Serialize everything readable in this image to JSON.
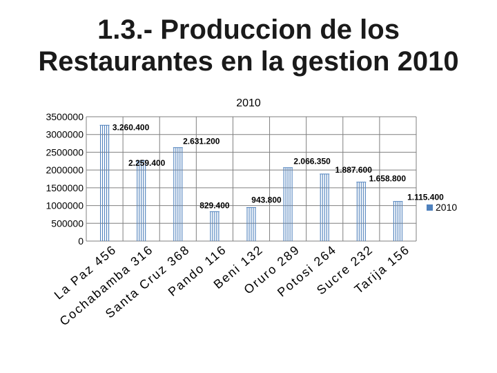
{
  "slide": {
    "title_line1": "1.3.- Produccion de los",
    "title_line2": "Restaurantes en la gestion 2010"
  },
  "chart_data": {
    "type": "bar",
    "title": "2010",
    "categories": [
      "La Paz 456",
      "Cochabamba 316",
      "Santa Cruz 368",
      "Pando 116",
      "Beni 132",
      "Oruro 289",
      "Potosi 264",
      "Sucre 232",
      "Tarija 156"
    ],
    "series": [
      {
        "name": "2010",
        "values": [
          3260400,
          2259400,
          2631200,
          829400,
          943800,
          2066350,
          1887600,
          1658800,
          1115400
        ],
        "data_labels": [
          "3.260.400",
          "2.259.400",
          "2.631.200",
          "829.400",
          "943.800",
          "2.066.350",
          "1.887.600",
          "1.658.800",
          "1.115.400"
        ],
        "color": "#4f81bd"
      }
    ],
    "ylim": [
      0,
      3500000
    ],
    "yticks": [
      "0",
      "500000",
      "1000000",
      "1500000",
      "2000000",
      "2500000",
      "3000000",
      "3500000"
    ],
    "grid": true,
    "legend_position": "right"
  }
}
